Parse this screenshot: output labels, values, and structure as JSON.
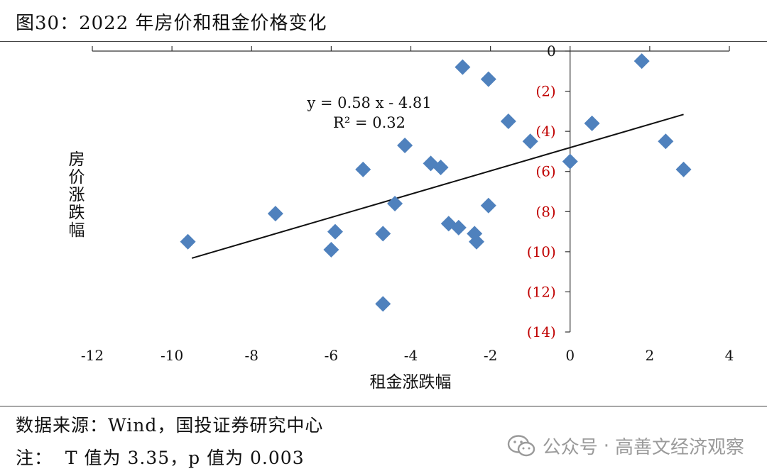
{
  "header": {
    "title": "图30：2022 年房价和租金价格变化"
  },
  "chart_data": {
    "type": "scatter",
    "xlabel": "租金涨跌幅",
    "ylabel": "房价涨跌幅",
    "xlim": [
      -12,
      4
    ],
    "ylim": [
      -14,
      0
    ],
    "x_ticks": [
      -12,
      -10,
      -8,
      -6,
      -4,
      -2,
      0,
      2,
      4
    ],
    "x_tick_labels": [
      "-12",
      "-10",
      "-8",
      "-6",
      "-4",
      "-2",
      "0",
      "2",
      "4"
    ],
    "y_ticks": [
      0,
      -2,
      -4,
      -6,
      -8,
      -10,
      -12,
      -14
    ],
    "y_tick_labels": [
      "0",
      "(2)",
      "(4)",
      "(6)",
      "(8)",
      "(10)",
      "(12)",
      "(14)"
    ],
    "grid": false,
    "marker_color": "#4F81BD",
    "negative_label_color": "#C00000",
    "points": [
      {
        "x": -9.6,
        "y": -9.5
      },
      {
        "x": -7.4,
        "y": -8.1
      },
      {
        "x": -6.0,
        "y": -9.9
      },
      {
        "x": -5.9,
        "y": -9.0
      },
      {
        "x": -5.2,
        "y": -5.9
      },
      {
        "x": -4.7,
        "y": -9.1
      },
      {
        "x": -4.7,
        "y": -12.6
      },
      {
        "x": -4.4,
        "y": -7.6
      },
      {
        "x": -4.15,
        "y": -4.7
      },
      {
        "x": -3.5,
        "y": -5.6
      },
      {
        "x": -3.25,
        "y": -5.8
      },
      {
        "x": -3.05,
        "y": -8.6
      },
      {
        "x": -2.8,
        "y": -8.8
      },
      {
        "x": -2.7,
        "y": -0.8
      },
      {
        "x": -2.4,
        "y": -9.1
      },
      {
        "x": -2.35,
        "y": -9.5
      },
      {
        "x": -2.05,
        "y": -7.7
      },
      {
        "x": -2.05,
        "y": -1.4
      },
      {
        "x": -1.55,
        "y": -3.5
      },
      {
        "x": -1.0,
        "y": -4.5
      },
      {
        "x": 0.0,
        "y": -5.5
      },
      {
        "x": 0.55,
        "y": -3.6
      },
      {
        "x": 1.8,
        "y": -0.5
      },
      {
        "x": 2.4,
        "y": -4.5
      },
      {
        "x": 2.85,
        "y": -5.9
      }
    ],
    "trendline": {
      "equation": "y = 0.58 x - 4.81",
      "r_squared": "R² = 0.32",
      "slope": 0.58,
      "intercept": -4.81,
      "x_range": [
        -9.5,
        2.85
      ]
    }
  },
  "footer": {
    "source": "数据来源：Wind，国投证券研究中心",
    "note": "注：  T 值为 3.35，p 值为 0.003"
  },
  "watermark": {
    "icon": "wechat-icon",
    "label": "公众号",
    "separator": "·",
    "account": "高善文经济观察"
  }
}
